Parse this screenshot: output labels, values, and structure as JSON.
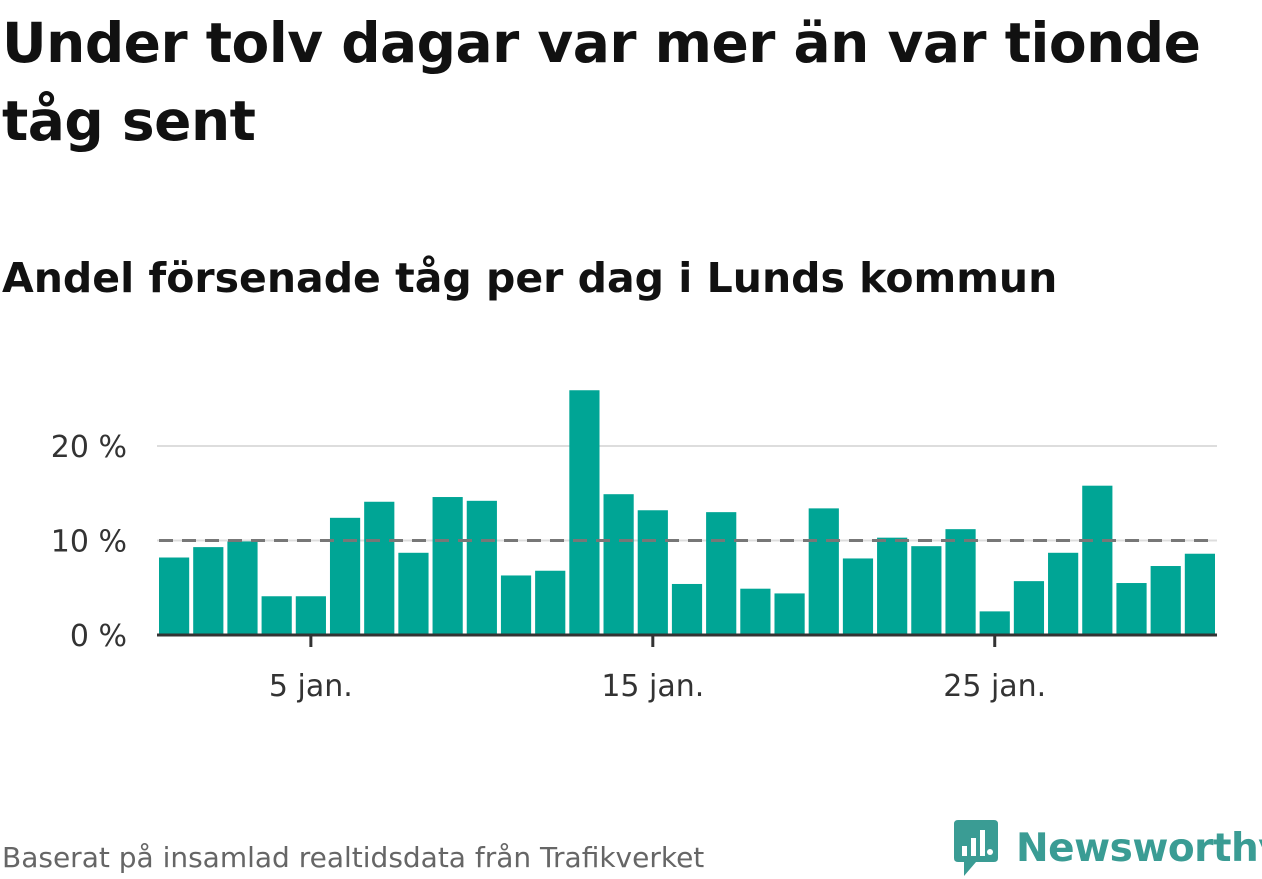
{
  "title": "Under tolv dagar var mer än var tionde tåg sent",
  "subtitle": "Andel försenade tåg per dag i Lunds kommun",
  "source": "Baserat på insamlad realtidsdata från Trafikverket",
  "logo": {
    "text": "Newsworthy",
    "icon": "newsworthy-logo-icon",
    "color": "#3a9c94"
  },
  "colors": {
    "bar": "#00a595",
    "reference_line": "#777777",
    "grid": "#dddddd",
    "axis": "#333333"
  },
  "chart_data": {
    "type": "bar",
    "x": [
      1,
      2,
      3,
      4,
      5,
      6,
      7,
      8,
      9,
      10,
      11,
      12,
      13,
      14,
      15,
      16,
      17,
      18,
      19,
      20,
      21,
      22,
      23,
      24,
      25,
      26,
      27,
      28,
      29,
      30,
      31
    ],
    "values": [
      8.2,
      9.3,
      9.9,
      4.1,
      4.1,
      12.4,
      14.1,
      8.7,
      14.6,
      14.2,
      6.3,
      6.8,
      25.9,
      14.9,
      13.2,
      5.4,
      13.0,
      4.9,
      4.4,
      13.4,
      8.1,
      10.3,
      9.4,
      11.2,
      2.5,
      5.7,
      8.7,
      15.8,
      5.5,
      7.3,
      8.6
    ],
    "xticks": [
      5,
      15,
      25
    ],
    "xtick_labels": [
      "5 jan.",
      "15 jan.",
      "25 jan."
    ],
    "yticks": [
      0,
      10,
      20
    ],
    "ytick_labels": [
      "0 %",
      "10 %",
      "20 %"
    ],
    "ylim": [
      0,
      26
    ],
    "xlim": [
      0.5,
      31.5
    ],
    "reference_line": 10,
    "grid": true,
    "xlabel": "",
    "ylabel": ""
  }
}
